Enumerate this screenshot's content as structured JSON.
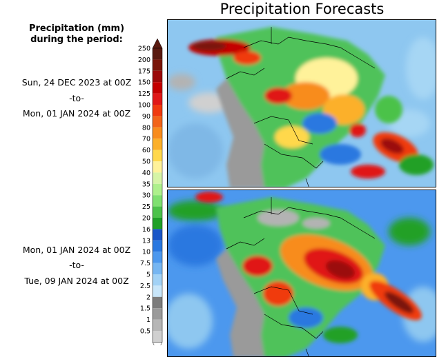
{
  "title": "Precipitation Forecasts",
  "legend": {
    "heading_line1": "Precipitation (mm)",
    "heading_line2": "during the period:",
    "levels": [
      "250",
      "200",
      "175",
      "150",
      "125",
      "100",
      "90",
      "80",
      "70",
      "60",
      "50",
      "40",
      "35",
      "30",
      "25",
      "20",
      "16",
      "13",
      "10",
      "7.5",
      "5",
      "2.5",
      "2",
      "1.5",
      "1",
      "0.5"
    ],
    "colors": [
      "#5a1a10",
      "#7a1508",
      "#9b0a0a",
      "#c40000",
      "#e01818",
      "#f03a10",
      "#f2641a",
      "#f88c1e",
      "#fcb02a",
      "#ffd84c",
      "#fff29a",
      "#d6f4a6",
      "#aef08c",
      "#7fe070",
      "#4cc24a",
      "#20a028",
      "#1a56c8",
      "#2a78e0",
      "#4c98ee",
      "#76b6f2",
      "#a2d2f6",
      "#c8e6fa",
      "#7c7c7c",
      "#9a9a9a",
      "#b6b6b6",
      "#d0d0d0"
    ],
    "bottom_triangle_color": "#ffffff"
  },
  "periods": [
    {
      "start": "Sun, 24 DEC 2023 at 00Z",
      "separator": "-to-",
      "end": "Mon, 01 JAN 2024 at 00Z"
    },
    {
      "start": "Mon, 01 JAN 2024 at 00Z",
      "separator": "-to-",
      "end": "Tue, 09 JAN 2024 at 00Z"
    }
  ],
  "colors": {
    "ocean": "#8ec7f0",
    "dry_land": "#b3b3b3",
    "border": "#000000"
  }
}
